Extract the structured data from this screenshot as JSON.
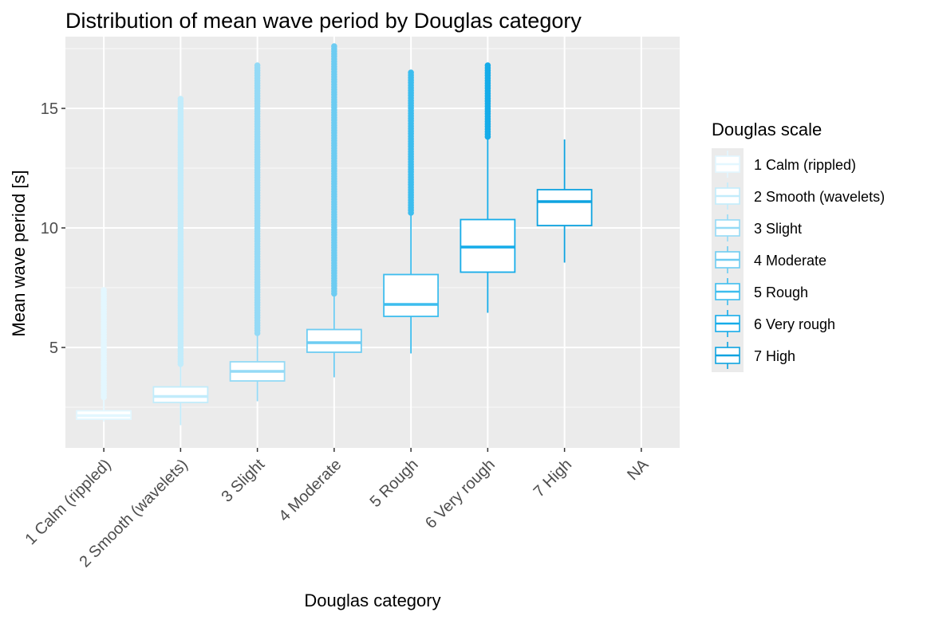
{
  "chart_data": {
    "type": "boxplot",
    "title": "Distribution of mean wave period by Douglas category",
    "xlabel": "Douglas category",
    "ylabel": "Mean wave period [s]",
    "categories": [
      "1 Calm (rippled)",
      "2 Smooth (wavelets)",
      "3 Slight",
      "4 Moderate",
      "5 Rough",
      "6 Very rough",
      "7 High",
      "NA"
    ],
    "ylim": [
      0.8,
      18.0
    ],
    "y_ticks": [
      5,
      10,
      15
    ],
    "y_tick_labels": [
      "5",
      "10",
      "15"
    ],
    "grid": true,
    "legend_title": "Douglas scale",
    "legend_position": "right",
    "legend_entries": [
      "1 Calm (rippled)",
      "2 Smooth (wavelets)",
      "3 Slight",
      "4 Moderate",
      "5 Rough",
      "6 Very rough",
      "7 High"
    ],
    "colors": [
      "#E3F7FF",
      "#C2ECFB",
      "#94DAF6",
      "#6DCCF2",
      "#3DBDEE",
      "#15ACE9",
      "#0EA3E0"
    ],
    "series": [
      {
        "name": "1 Calm (rippled)",
        "min": 1.9,
        "q1": 2.0,
        "median": 2.15,
        "q3": 2.35,
        "max": 2.8,
        "outlier_min": 2.9,
        "outlier_max": 7.4
      },
      {
        "name": "2 Smooth (wavelets)",
        "min": 1.75,
        "q1": 2.7,
        "median": 2.95,
        "q3": 3.35,
        "max": 4.3,
        "outlier_min": 4.3,
        "outlier_max": 15.4
      },
      {
        "name": "3 Slight",
        "min": 2.75,
        "q1": 3.6,
        "median": 4.0,
        "q3": 4.4,
        "max": 5.6,
        "outlier_min": 5.6,
        "outlier_max": 16.8
      },
      {
        "name": "4 Moderate",
        "min": 3.75,
        "q1": 4.8,
        "median": 5.2,
        "q3": 5.75,
        "max": 7.2,
        "outlier_min": 7.2,
        "outlier_max": 17.6
      },
      {
        "name": "5 Rough",
        "min": 4.75,
        "q1": 6.3,
        "median": 6.8,
        "q3": 8.05,
        "max": 10.6,
        "outlier_min": 10.6,
        "outlier_max": 16.5
      },
      {
        "name": "6 Very rough",
        "min": 6.45,
        "q1": 8.15,
        "median": 9.2,
        "q3": 10.35,
        "max": 13.7,
        "outlier_min": 13.8,
        "outlier_max": 16.8
      },
      {
        "name": "7 High",
        "min": 8.55,
        "q1": 10.1,
        "median": 11.1,
        "q3": 11.6,
        "max": 13.7,
        "outlier_min": null,
        "outlier_max": null
      }
    ]
  }
}
